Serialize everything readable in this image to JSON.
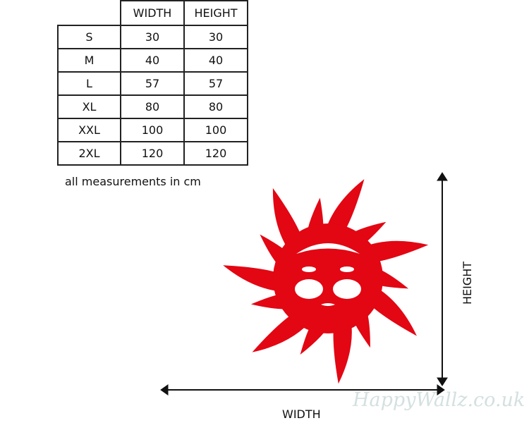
{
  "table": {
    "headers": [
      "",
      "WIDTH",
      "HEIGHT"
    ],
    "rows": [
      [
        "S",
        "30",
        "30"
      ],
      [
        "M",
        "40",
        "40"
      ],
      [
        "L",
        "57",
        "57"
      ],
      [
        "XL",
        "80",
        "80"
      ],
      [
        "XXL",
        "100",
        "100"
      ],
      [
        "2XL",
        "120",
        "120"
      ]
    ]
  },
  "note": "all measurements in cm",
  "width_label": "WIDTH",
  "height_label": "HEIGHT",
  "watermark": "HappyWallz.co.uk",
  "colors": {
    "sun": "#e30613",
    "arrow": "#111111"
  }
}
